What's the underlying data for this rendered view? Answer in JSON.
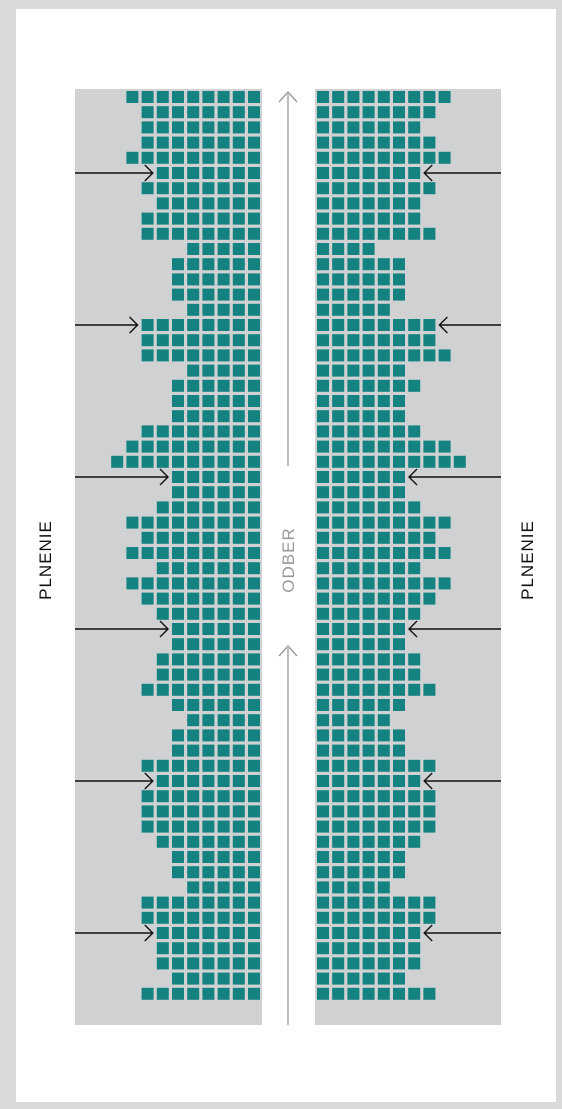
{
  "labels": {
    "left": "PLNENIE",
    "center": "ODBER",
    "right": "PLNENIE"
  },
  "colors": {
    "cell": "#138280",
    "band": "#d0d1d3",
    "arrow": "#111111",
    "center_arrow": "#9a9a9a"
  },
  "grid": {
    "rows": 60,
    "left_cells_per_row": [
      9,
      8,
      8,
      8,
      9,
      7,
      8,
      7,
      8,
      8,
      5,
      6,
      6,
      6,
      5,
      8,
      8,
      8,
      5,
      6,
      6,
      6,
      8,
      9,
      10,
      6,
      6,
      7,
      9,
      8,
      9,
      7,
      9,
      8,
      7,
      6,
      6,
      7,
      7,
      8,
      6,
      5,
      6,
      6,
      8,
      7,
      8,
      8,
      8,
      7,
      6,
      6,
      5,
      8,
      8,
      7,
      7,
      7,
      6,
      8
    ],
    "right_cells_per_row": [
      9,
      8,
      7,
      8,
      9,
      7,
      8,
      7,
      7,
      8,
      4,
      6,
      6,
      6,
      5,
      8,
      8,
      9,
      6,
      7,
      6,
      6,
      7,
      9,
      10,
      6,
      6,
      7,
      9,
      8,
      9,
      7,
      9,
      8,
      7,
      6,
      6,
      7,
      7,
      8,
      6,
      5,
      6,
      6,
      8,
      7,
      8,
      8,
      8,
      7,
      6,
      6,
      5,
      8,
      8,
      7,
      7,
      7,
      6,
      8
    ]
  },
  "arrow_rows": [
    5,
    15,
    25,
    35,
    45,
    55
  ]
}
